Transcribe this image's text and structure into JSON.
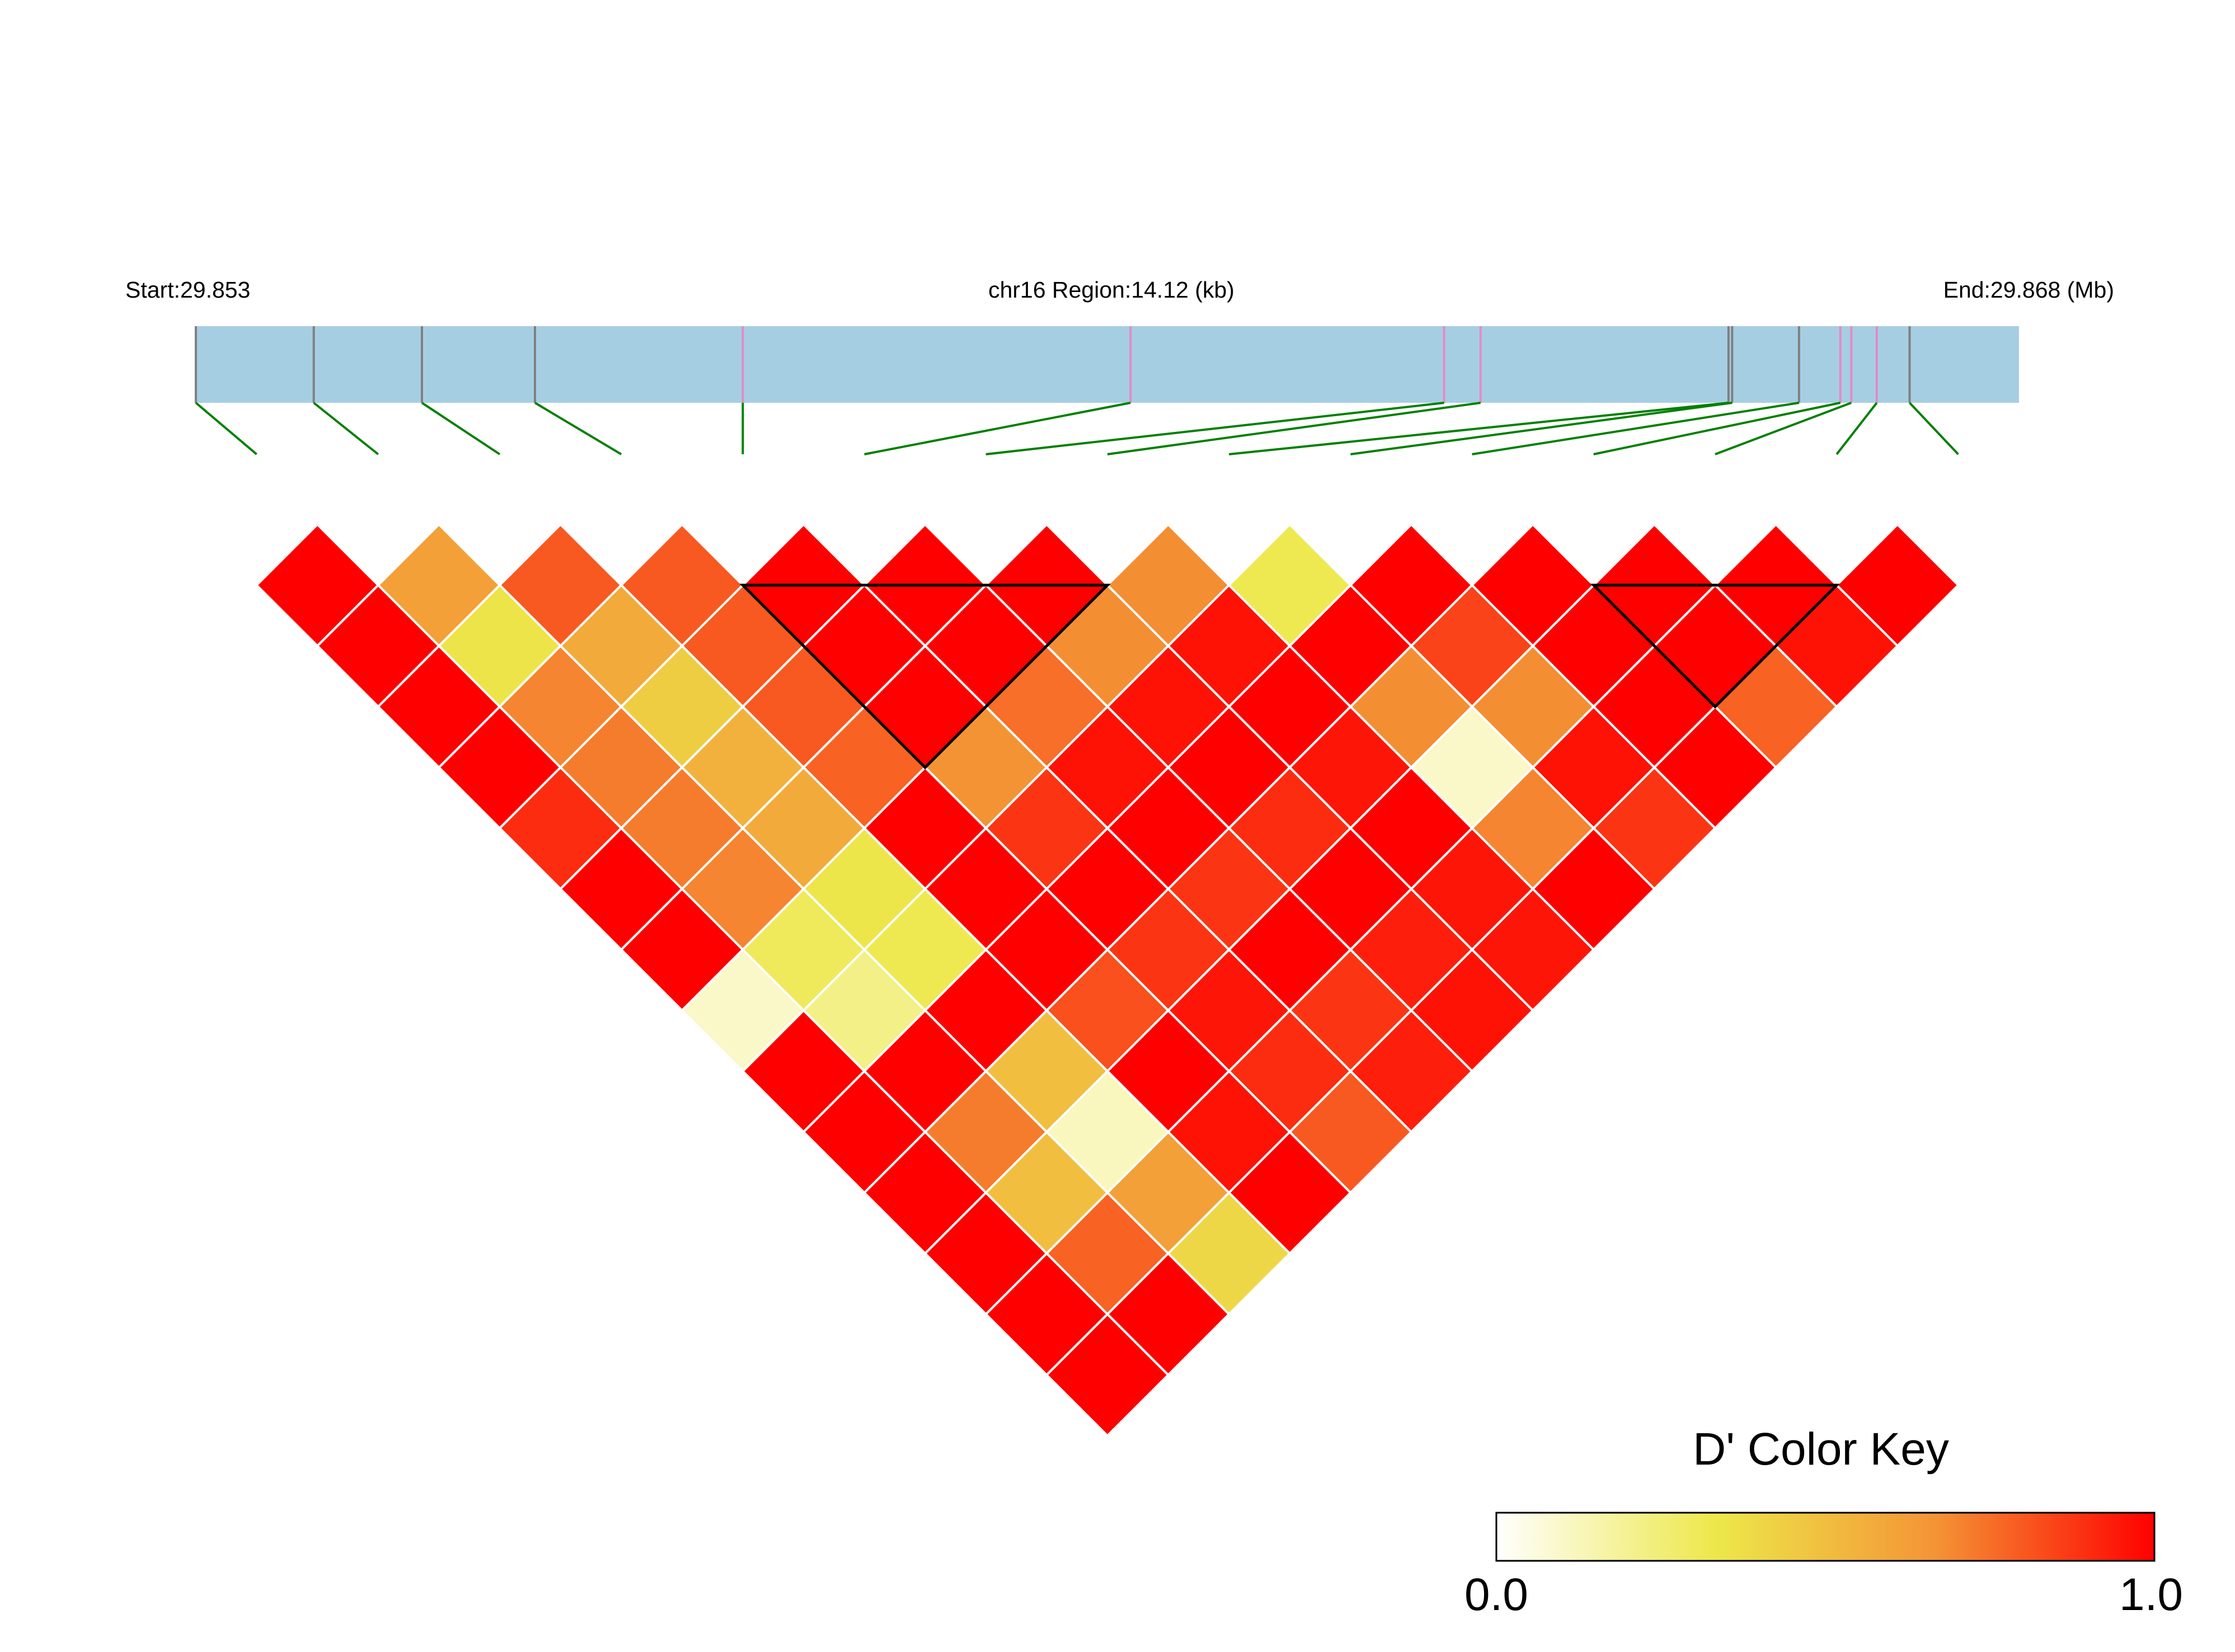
{
  "header": {
    "start_label": "Start:29.853",
    "region_label": "chr16 Region:14.12 (kb)",
    "end_label": "End:29.868 (Mb)"
  },
  "colors": {
    "track_fill": "#a6cee3",
    "snp_tick_default": "#808080",
    "snp_tick_highlight": "#e58ac4",
    "connector": "#008000",
    "block_outline": "#000000",
    "cell_border": "#ffffff",
    "scale": [
      "#ffffff",
      "#ede84a",
      "#f49435",
      "#ff0000"
    ]
  },
  "chart_data": {
    "type": "heatmap",
    "title": "",
    "metric": "D'",
    "region": {
      "chromosome": "chr16",
      "start_mb": 29.853,
      "end_mb": 29.868,
      "length_kb": 14.12
    },
    "snp_count": 15,
    "snp_positions_mb": [
      29.853,
      29.85397,
      29.85486,
      29.85579,
      29.8575,
      29.86069,
      29.86327,
      29.86357,
      29.86561,
      29.86564,
      29.86619,
      29.86653,
      29.86662,
      29.86683,
      29.8671
    ],
    "snp_highlight": [
      false,
      false,
      false,
      false,
      true,
      true,
      true,
      true,
      false,
      false,
      false,
      true,
      true,
      true,
      false
    ],
    "dprime_by_offset": [
      [
        1.0,
        0.62,
        0.8,
        0.8,
        1.0,
        1.0,
        1.0,
        0.68,
        0.32,
        1.0,
        1.0,
        1.0,
        1.0,
        1.0
      ],
      [
        1.0,
        0.35,
        0.58,
        0.8,
        1.0,
        1.0,
        0.68,
        0.96,
        1.0,
        0.85,
        1.0,
        1.0,
        0.96
      ],
      [
        1.0,
        0.7,
        0.44,
        0.8,
        1.0,
        0.75,
        0.96,
        1.0,
        0.68,
        0.68,
        1.0,
        0.78
      ],
      [
        1.0,
        0.72,
        0.55,
        0.78,
        0.67,
        0.96,
        1.0,
        0.95,
        0.1,
        0.96,
        1.0
      ],
      [
        0.9,
        0.72,
        0.58,
        1.0,
        0.88,
        1.0,
        0.9,
        1.0,
        0.7,
        0.88
      ],
      [
        1.0,
        0.7,
        0.34,
        1.0,
        1.0,
        0.88,
        1.0,
        0.95,
        1.0
      ],
      [
        1.0,
        0.3,
        0.32,
        1.0,
        0.88,
        1.0,
        0.93,
        0.95
      ],
      [
        0.1,
        0.22,
        1.0,
        0.82,
        0.95,
        0.88,
        0.96
      ],
      [
        1.0,
        1.0,
        0.5,
        1.0,
        0.9,
        0.93
      ],
      [
        1.0,
        0.72,
        0.12,
        0.96,
        0.8
      ],
      [
        1.0,
        0.5,
        0.62,
        1.0
      ],
      [
        1.0,
        0.78,
        0.4
      ],
      [
        1.0,
        1.0
      ],
      [
        1.0
      ]
    ],
    "haplotype_blocks": [
      [
        5,
        8
      ],
      [
        12,
        14
      ]
    ],
    "legend": {
      "title": "D' Color Key",
      "min_label": "0.0",
      "max_label": "1.0",
      "placement": "bottom-right"
    }
  }
}
